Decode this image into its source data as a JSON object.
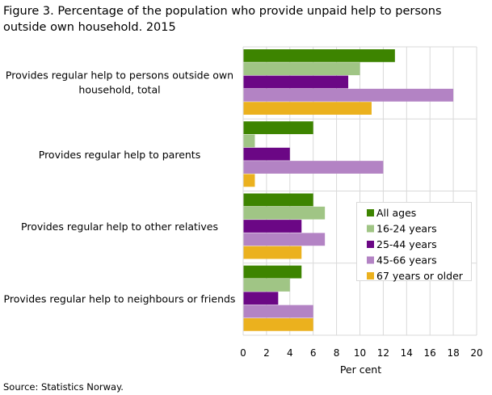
{
  "chart_data": {
    "type": "bar",
    "orientation": "horizontal",
    "title": "Figure 3. Percentage of the population who provide unpaid help to persons outside own household. 2015",
    "categories": [
      [
        "Provides regular help to persons outside own",
        "household, total"
      ],
      [
        "Provides regular help to parents"
      ],
      [
        "Provides regular help to other relatives"
      ],
      [
        "Provides regular help to neighbours or friends"
      ]
    ],
    "series": [
      {
        "name": "All ages",
        "color": "#3d8400",
        "values": [
          13,
          6,
          6,
          5
        ]
      },
      {
        "name": "16-24 years",
        "color": "#a0c585",
        "values": [
          10,
          1,
          7,
          4
        ]
      },
      {
        "name": "25-44 years",
        "color": "#6b0785",
        "values": [
          9,
          4,
          5,
          3
        ]
      },
      {
        "name": "45-66 years",
        "color": "#b383c4",
        "values": [
          18,
          12,
          7,
          6
        ]
      },
      {
        "name": "67 years or older",
        "color": "#ebb11e",
        "values": [
          11,
          1,
          5,
          6
        ]
      }
    ],
    "xlabel": "Per cent",
    "xlim": [
      0,
      20
    ],
    "xticks": [
      0,
      2,
      4,
      6,
      8,
      10,
      12,
      14,
      16,
      18,
      20
    ],
    "grid": true,
    "legend": "right"
  },
  "source": "Source: Statistics Norway."
}
